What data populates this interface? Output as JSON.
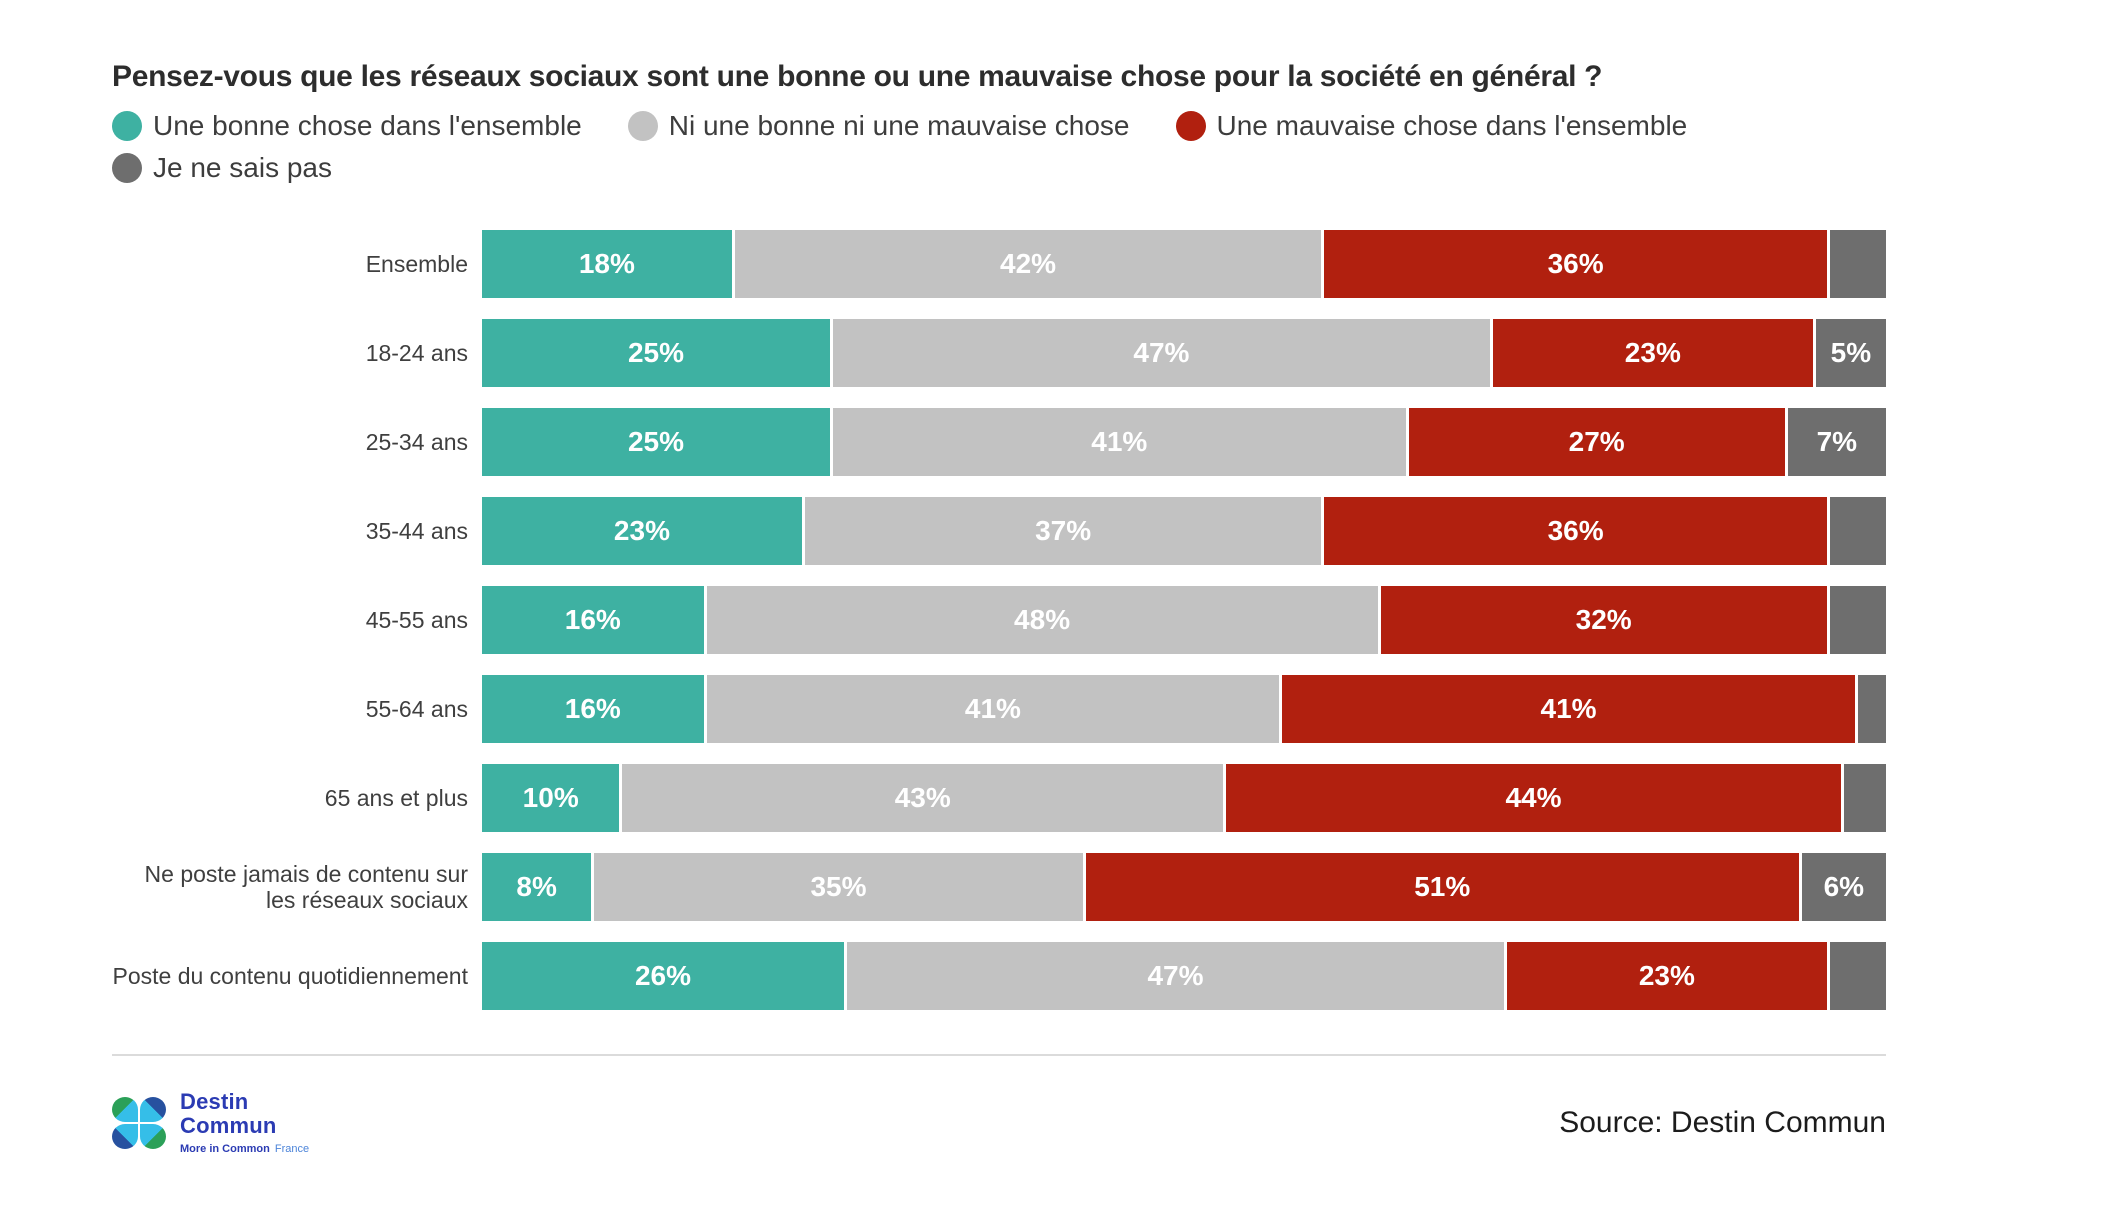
{
  "header": {
    "title": "Pensez-vous que les réseaux sociaux sont une bonne ou une mauvaise chose pour la société en général ?"
  },
  "chart_data": {
    "type": "bar",
    "stacked": true,
    "orientation": "horizontal",
    "unit": "%",
    "xlim": [
      0,
      100
    ],
    "grid": false,
    "legend_position": "top",
    "label_threshold_pct": 5,
    "hatched_category_index": 0,
    "title": "Pensez-vous que les réseaux sociaux sont une bonne ou une mauvaise chose pour la société en général ?",
    "categories": [
      "Ensemble",
      "18-24 ans",
      "25-34 ans",
      "35-44 ans",
      "45-55 ans",
      "55-64 ans",
      "65 ans et plus",
      "Ne poste jamais de contenu sur les réseaux sociaux",
      "Poste du contenu quotidiennement"
    ],
    "series": [
      {
        "name": "Une bonne chose dans l'ensemble",
        "color": "#3eb1a2",
        "values": [
          18,
          25,
          25,
          23,
          16,
          16,
          10,
          8,
          26
        ]
      },
      {
        "name": "Ni une bonne ni une mauvaise chose",
        "color": "#c2c2c2",
        "values": [
          42,
          47,
          41,
          37,
          48,
          41,
          43,
          35,
          47
        ]
      },
      {
        "name": "Une mauvaise chose dans l'ensemble",
        "color": "#b1200f",
        "values": [
          36,
          23,
          27,
          36,
          32,
          41,
          44,
          51,
          23
        ]
      },
      {
        "name": "Je ne sais pas",
        "color": "#6e6e6e",
        "values": [
          4,
          5,
          7,
          4,
          4,
          2,
          3,
          6,
          4
        ]
      }
    ]
  },
  "footer": {
    "logo": {
      "line1": "Destin",
      "line2": "Commun",
      "tagline_bold": "More in Common",
      "tagline_light": "France"
    },
    "source": "Source: Destin Commun"
  }
}
